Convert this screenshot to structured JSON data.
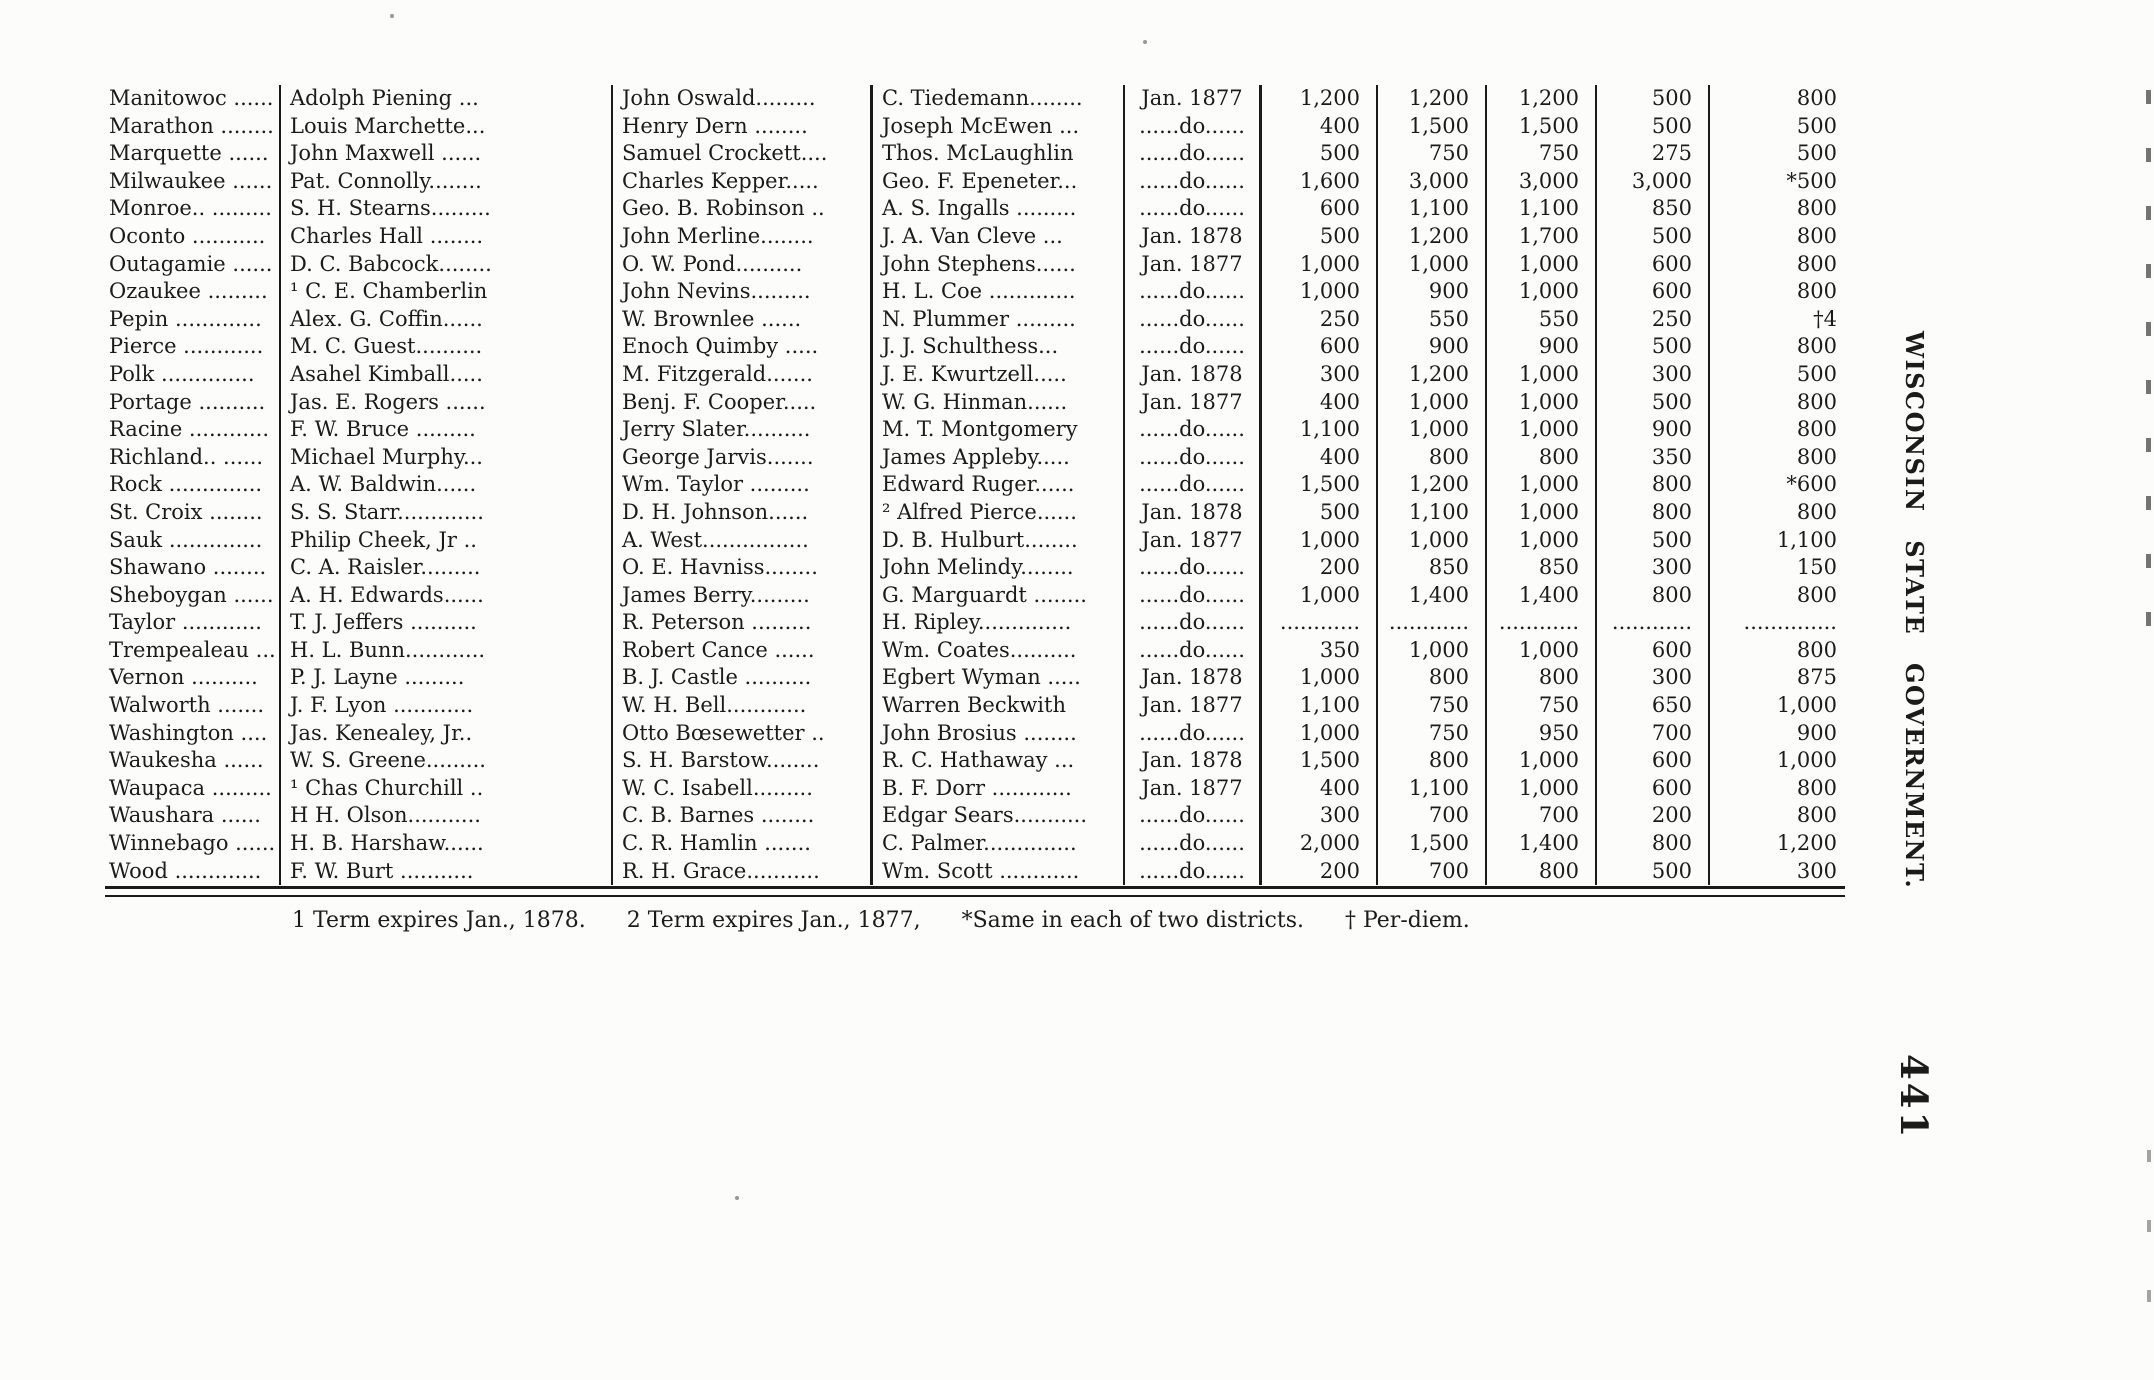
{
  "page": {
    "side_text": "WISCONSIN STATE GOVERNMENT.",
    "page_number": "441",
    "footnotes": [
      "1 Term expires Jan., 1878.",
      "2 Term expires Jan., 1877,",
      "*Same in each of two districts.",
      "† Per-diem."
    ],
    "colors": {
      "paper": "#fcfcfa",
      "ink": "#1b1b18"
    }
  },
  "table": {
    "columns": [
      "county",
      "officer2",
      "officer3",
      "officer4",
      "term_begins",
      "salary1",
      "salary2",
      "salary3",
      "salary4",
      "salary5"
    ],
    "rows": [
      {
        "county": "Manitowoc ......",
        "officer2": "Adolph Piening ...",
        "officer3": "John Oswald.........",
        "officer4": "C. Tiedemann........",
        "term": "Jan. 1877",
        "v1": "1,200",
        "v2": "1,200",
        "v3": "1,200",
        "v4": "500",
        "v5": "800"
      },
      {
        "county": "Marathon ........",
        "officer2": "Louis Marchette...",
        "officer3": "Henry Dern ........",
        "officer4": "Joseph McEwen ...",
        "term": "......do......",
        "v1": "400",
        "v2": "1,500",
        "v3": "1,500",
        "v4": "500",
        "v5": "500"
      },
      {
        "county": "Marquette ......",
        "officer2": "John Maxwell ......",
        "officer3": "Samuel Crockett....",
        "officer4": "Thos. McLaughlin",
        "term": "......do......",
        "v1": "500",
        "v2": "750",
        "v3": "750",
        "v4": "275",
        "v5": "500"
      },
      {
        "county": "Milwaukee ......",
        "officer2": "Pat. Connolly........",
        "officer3": "Charles Kepper.....",
        "officer4": "Geo. F. Epeneter...",
        "term": "......do......",
        "v1": "1,600",
        "v2": "3,000",
        "v3": "3,000",
        "v4": "3,000",
        "v5": "*500"
      },
      {
        "county": "Monroe.. .........",
        "officer2": "S. H. Stearns.........",
        "officer3": "Geo. B. Robinson ..",
        "officer4": "A. S. Ingalls .........",
        "term": "......do......",
        "v1": "600",
        "v2": "1,100",
        "v3": "1,100",
        "v4": "850",
        "v5": "800"
      },
      {
        "county": "Oconto ...........",
        "officer2": "Charles Hall ........",
        "officer3": "John Merline........",
        "officer4": "J. A. Van Cleve ...",
        "term": "Jan. 1878",
        "v1": "500",
        "v2": "1,200",
        "v3": "1,700",
        "v4": "500",
        "v5": "800"
      },
      {
        "county": "Outagamie ......",
        "officer2": "D. C. Babcock........",
        "officer3": "O. W. Pond..........",
        "officer4": "John Stephens......",
        "term": "Jan. 1877",
        "v1": "1,000",
        "v2": "1,000",
        "v3": "1,000",
        "v4": "600",
        "v5": "800"
      },
      {
        "county": "Ozaukee .........",
        "officer2": "¹ C. E. Chamberlin",
        "officer3": "John Nevins.........",
        "officer4": "H. L. Coe .............",
        "term": "......do......",
        "v1": "1,000",
        "v2": "900",
        "v3": "1,000",
        "v4": "600",
        "v5": "800"
      },
      {
        "county": "Pepin .............",
        "officer2": "Alex. G. Coffin......",
        "officer3": "W. Brownlee ......",
        "officer4": "N. Plummer .........",
        "term": "......do......",
        "v1": "250",
        "v2": "550",
        "v3": "550",
        "v4": "250",
        "v5": "†4"
      },
      {
        "county": "Pierce ............",
        "officer2": "M. C. Guest..........",
        "officer3": "Enoch Quimby .....",
        "officer4": "J. J. Schulthess...",
        "term": "......do......",
        "v1": "600",
        "v2": "900",
        "v3": "900",
        "v4": "500",
        "v5": "800"
      },
      {
        "county": "Polk ..............",
        "officer2": "Asahel Kimball.....",
        "officer3": "M. Fitzgerald.......",
        "officer4": "J. E. Kwurtzell.....",
        "term": "Jan. 1878",
        "v1": "300",
        "v2": "1,200",
        "v3": "1,000",
        "v4": "300",
        "v5": "500"
      },
      {
        "county": "Portage ..........",
        "officer2": "Jas. E. Rogers ......",
        "officer3": "Benj. F. Cooper.....",
        "officer4": "W. G. Hinman......",
        "term": "Jan. 1877",
        "v1": "400",
        "v2": "1,000",
        "v3": "1,000",
        "v4": "500",
        "v5": "800"
      },
      {
        "county": "Racine ............",
        "officer2": "F. W. Bruce .........",
        "officer3": "Jerry Slater..........",
        "officer4": "M. T. Montgomery",
        "term": "......do......",
        "v1": "1,100",
        "v2": "1,000",
        "v3": "1,000",
        "v4": "900",
        "v5": "800"
      },
      {
        "county": "Richland.. ......",
        "officer2": "Michael Murphy...",
        "officer3": "George Jarvis.......",
        "officer4": "James Appleby.....",
        "term": "......do......",
        "v1": "400",
        "v2": "800",
        "v3": "800",
        "v4": "350",
        "v5": "800"
      },
      {
        "county": "Rock ..............",
        "officer2": "A. W. Baldwin......",
        "officer3": "Wm. Taylor .........",
        "officer4": "Edward Ruger......",
        "term": "......do......",
        "v1": "1,500",
        "v2": "1,200",
        "v3": "1,000",
        "v4": "800",
        "v5": "*600"
      },
      {
        "county": "St. Croix ........",
        "officer2": "S. S. Starr.............",
        "officer3": "D. H. Johnson......",
        "officer4": "² Alfred Pierce......",
        "term": "Jan. 1878",
        "v1": "500",
        "v2": "1,100",
        "v3": "1,000",
        "v4": "800",
        "v5": "800"
      },
      {
        "county": "Sauk ..............",
        "officer2": "Philip Cheek, Jr ..",
        "officer3": "A. West................",
        "officer4": "D. B. Hulburt........",
        "term": "Jan. 1877",
        "v1": "1,000",
        "v2": "1,000",
        "v3": "1,000",
        "v4": "500",
        "v5": "1,100"
      },
      {
        "county": "Shawano ........",
        "officer2": "C. A. Raisler.........",
        "officer3": "O. E. Havniss........",
        "officer4": "John Melindy........",
        "term": "......do......",
        "v1": "200",
        "v2": "850",
        "v3": "850",
        "v4": "300",
        "v5": "150"
      },
      {
        "county": "Sheboygan ......",
        "officer2": "A. H. Edwards......",
        "officer3": "James Berry.........",
        "officer4": "G. Marguardt ........",
        "term": "......do......",
        "v1": "1,000",
        "v2": "1,400",
        "v3": "1,400",
        "v4": "800",
        "v5": "800"
      },
      {
        "county": "Taylor ............",
        "officer2": "T. J. Jeffers ..........",
        "officer3": "R. Peterson .........",
        "officer4": "H. Ripley..............",
        "term": "......do......",
        "v1": "............",
        "v2": "............",
        "v3": "............",
        "v4": "............",
        "v5": ".............."
      },
      {
        "county": "Trempealeau ...",
        "officer2": "H. L. Bunn............",
        "officer3": "Robert Cance ......",
        "officer4": "Wm. Coates..........",
        "term": "......do......",
        "v1": "350",
        "v2": "1,000",
        "v3": "1,000",
        "v4": "600",
        "v5": "800"
      },
      {
        "county": "Vernon ..........",
        "officer2": "P. J. Layne .........",
        "officer3": "B. J. Castle ..........",
        "officer4": "Egbert Wyman .....",
        "term": "Jan. 1878",
        "v1": "1,000",
        "v2": "800",
        "v3": "800",
        "v4": "300",
        "v5": "875"
      },
      {
        "county": "Walworth .......",
        "officer2": "J. F. Lyon ............",
        "officer3": "W. H. Bell............",
        "officer4": "Warren Beckwith",
        "term": "Jan. 1877",
        "v1": "1,100",
        "v2": "750",
        "v3": "750",
        "v4": "650",
        "v5": "1,000"
      },
      {
        "county": "Washington ....",
        "officer2": "Jas. Kenealey, Jr..",
        "officer3": "Otto Bœsewetter ..",
        "officer4": "John Brosius ........",
        "term": "......do......",
        "v1": "1,000",
        "v2": "750",
        "v3": "950",
        "v4": "700",
        "v5": "900"
      },
      {
        "county": "Waukesha ......",
        "officer2": "W. S. Greene.........",
        "officer3": "S. H. Barstow........",
        "officer4": "R. C. Hathaway ...",
        "term": "Jan. 1878",
        "v1": "1,500",
        "v2": "800",
        "v3": "1,000",
        "v4": "600",
        "v5": "1,000"
      },
      {
        "county": "Waupaca .........",
        "officer2": "¹ Chas Churchill ..",
        "officer3": "W. C. Isabell.........",
        "officer4": "B. F. Dorr ............",
        "term": "Jan. 1877",
        "v1": "400",
        "v2": "1,100",
        "v3": "1,000",
        "v4": "600",
        "v5": "800"
      },
      {
        "county": "Waushara ......",
        "officer2": "H  H. Olson...........",
        "officer3": "C. B. Barnes ........",
        "officer4": "Edgar Sears...........",
        "term": "......do......",
        "v1": "300",
        "v2": "700",
        "v3": "700",
        "v4": "200",
        "v5": "800"
      },
      {
        "county": "Winnebago ......",
        "officer2": "H. B. Harshaw......",
        "officer3": "C. R. Hamlin .......",
        "officer4": "C. Palmer..............",
        "term": "......do......",
        "v1": "2,000",
        "v2": "1,500",
        "v3": "1,400",
        "v4": "800",
        "v5": "1,200"
      },
      {
        "county": "Wood .............",
        "officer2": "F. W. Burt ...........",
        "officer3": "R. H. Grace...........",
        "officer4": "Wm. Scott ............",
        "term": "......do......",
        "v1": "200",
        "v2": "700",
        "v3": "800",
        "v4": "500",
        "v5": "300"
      }
    ]
  }
}
